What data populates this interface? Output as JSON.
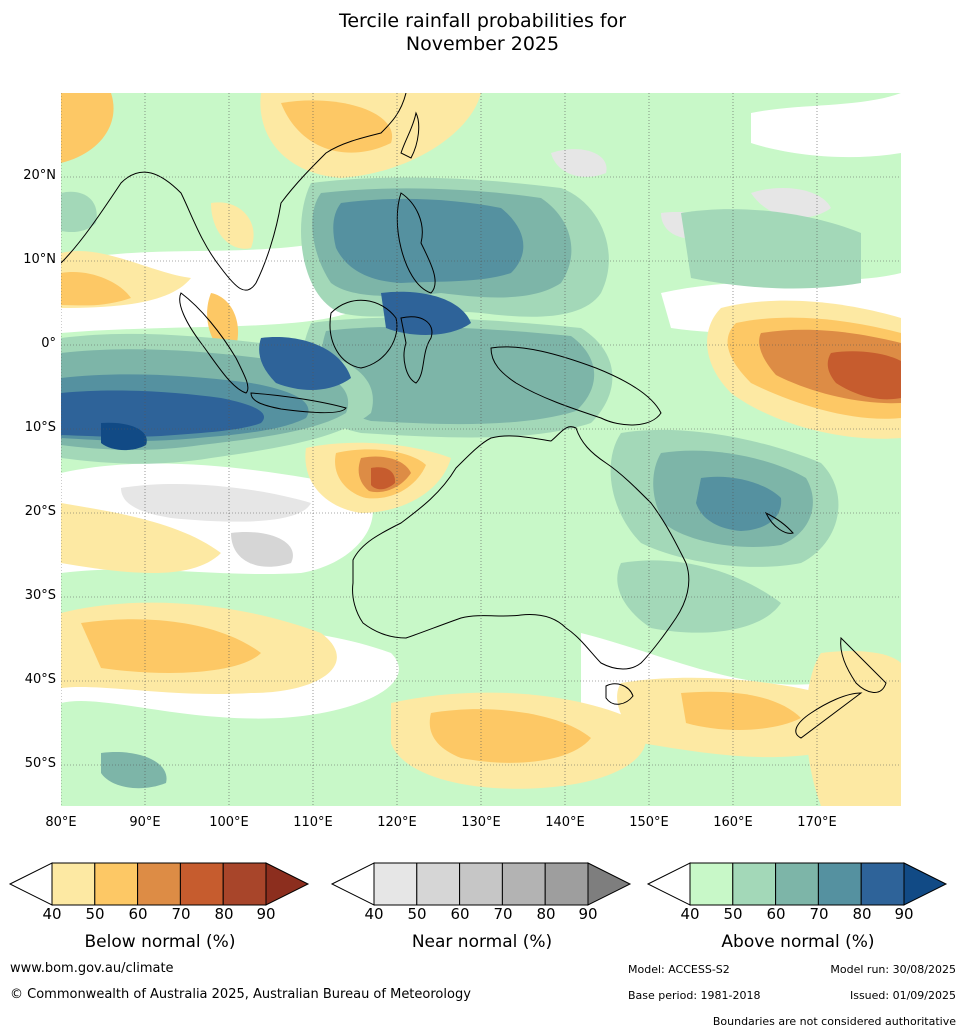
{
  "title_line1": "Tercile rainfall probabilities for",
  "title_line2": "November 2025",
  "lat_labels": [
    "20°N",
    "10°N",
    "0°",
    "10°S",
    "20°S",
    "30°S",
    "40°S",
    "50°S"
  ],
  "lon_labels": [
    "80°E",
    "90°E",
    "100°E",
    "110°E",
    "120°E",
    "130°E",
    "140°E",
    "150°E",
    "160°E",
    "170°E"
  ],
  "legends": [
    {
      "title": "Below normal (%)",
      "colors": [
        "#fde9a3",
        "#fdc865",
        "#dd8c45",
        "#c65c2e",
        "#a8452a",
        "#8c2e1e"
      ],
      "ticks": [
        "40",
        "50",
        "60",
        "70",
        "80",
        "90"
      ]
    },
    {
      "title": "Near normal (%)",
      "colors": [
        "#e6e6e6",
        "#d6d6d6",
        "#c6c6c6",
        "#b3b3b3",
        "#9e9e9e",
        "#7e7e7e"
      ],
      "ticks": [
        "40",
        "50",
        "60",
        "70",
        "80",
        "90"
      ]
    },
    {
      "title": "Above normal (%)",
      "colors": [
        "#c8f8c8",
        "#a3d8b8",
        "#7db5a8",
        "#5591a0",
        "#2e6399",
        "#114a85"
      ],
      "ticks": [
        "40",
        "50",
        "60",
        "70",
        "80",
        "90"
      ]
    }
  ],
  "footer": {
    "website": "www.bom.gov.au/climate",
    "copyright": "© Commonwealth of Australia 2025, Australian Bureau of Meteorology",
    "model": "Model: ACCESS-S2",
    "model_run": "Model run: 30/08/2025",
    "base_period": "Base period: 1981-2018",
    "issued": "Issued: 01/09/2025",
    "boundaries": "Boundaries are not considered authoritative"
  }
}
